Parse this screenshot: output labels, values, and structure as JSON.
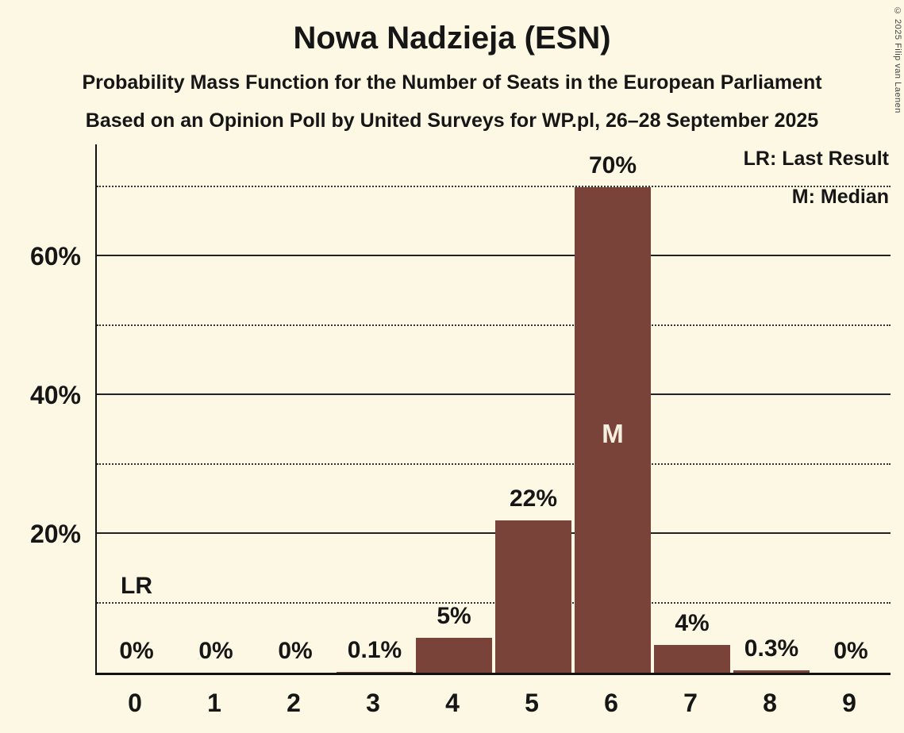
{
  "title": "Nowa Nadzieja (ESN)",
  "subtitle1": "Probability Mass Function for the Number of Seats in the European Parliament",
  "subtitle2": "Based on an Opinion Poll by United Surveys for WP.pl, 26–28 September 2025",
  "copyright": "© 2025 Filip van Laenen",
  "legend": {
    "last_result": "LR: Last Result",
    "median": "M: Median"
  },
  "chart_data": {
    "type": "bar",
    "title": "Nowa Nadzieja (ESN)",
    "xlabel": "",
    "ylabel": "",
    "categories": [
      "0",
      "1",
      "2",
      "3",
      "4",
      "5",
      "6",
      "7",
      "8",
      "9"
    ],
    "values": [
      0,
      0,
      0,
      0.1,
      5,
      22,
      70,
      4,
      0.3,
      0
    ],
    "value_labels": [
      "0%",
      "0%",
      "0%",
      "0.1%",
      "5%",
      "22%",
      "70%",
      "4%",
      "0.3%",
      "0%"
    ],
    "ylim": [
      0,
      76
    ],
    "ytick_values": [
      20,
      40,
      60
    ],
    "ytick_labels": [
      "20%",
      "40%",
      "60%"
    ],
    "solid_gridlines": [
      20,
      40,
      60
    ],
    "dotted_gridlines": [
      10,
      30,
      50,
      70
    ],
    "legend_position": "top-right",
    "grid": true,
    "median_seats": 6,
    "median_marker": "M",
    "last_result_seats": 0,
    "last_result_marker": "LR",
    "colors": {
      "bar": "#7A4339",
      "background": "#FCF8E3",
      "text": "#161616"
    }
  }
}
